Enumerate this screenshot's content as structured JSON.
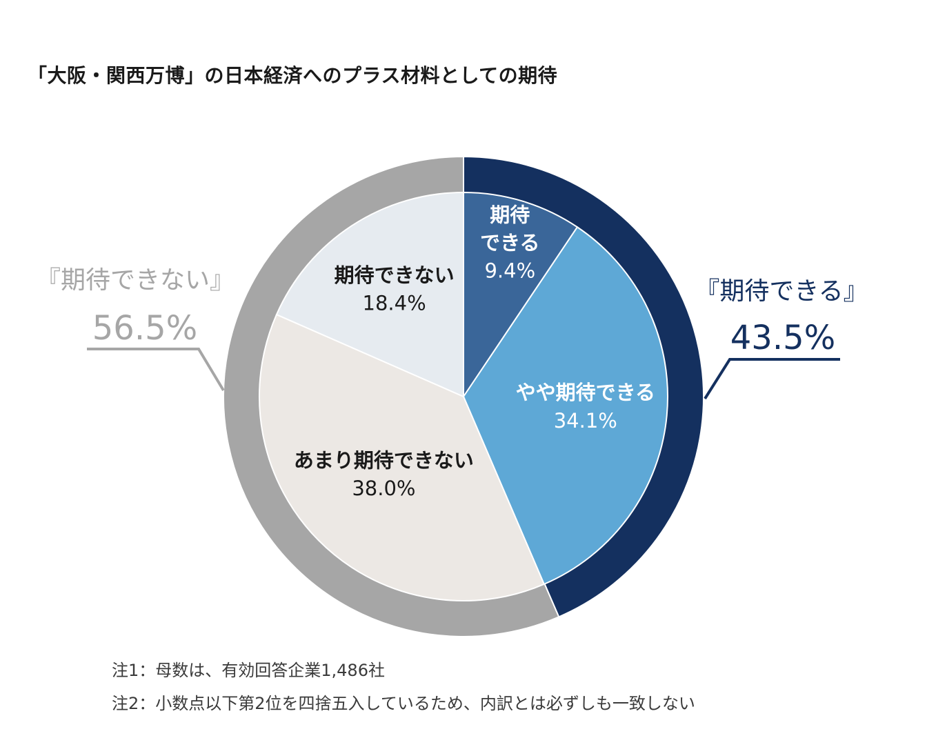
{
  "chart_data": {
    "type": "pie",
    "title": "「大阪・関西万博」の日本経済へのプラス材料としての期待",
    "slices": [
      {
        "name": "期待\nできる",
        "value": 9.4,
        "label": "9.4%",
        "color": "#3a6699",
        "text_color": "#ffffff"
      },
      {
        "name": "やや期待できる",
        "value": 34.1,
        "label": "34.1%",
        "color": "#5ea8d6",
        "text_color": "#ffffff"
      },
      {
        "name": "あまり期待できない",
        "value": 38.0,
        "label": "38.0%",
        "color": "#ece8e4",
        "text_color": "#1a1a1a"
      },
      {
        "name": "期待できない",
        "value": 18.4,
        "label": "18.4%",
        "color": "#e6ebf0",
        "text_color": "#1a1a1a"
      }
    ],
    "groups": [
      {
        "name": "『期待できる』",
        "value": 43.5,
        "label": "43.5%",
        "color": "#14305f"
      },
      {
        "name": "『期待できない』",
        "value": 56.5,
        "label": "56.5%",
        "color": "#a6a6a6"
      }
    ],
    "notes": [
      "注1：母数は、有効回答企業1,486社",
      "注2：小数点以下第2位を四捨五入しているため、内訳とは必ずしも一致しない"
    ]
  }
}
